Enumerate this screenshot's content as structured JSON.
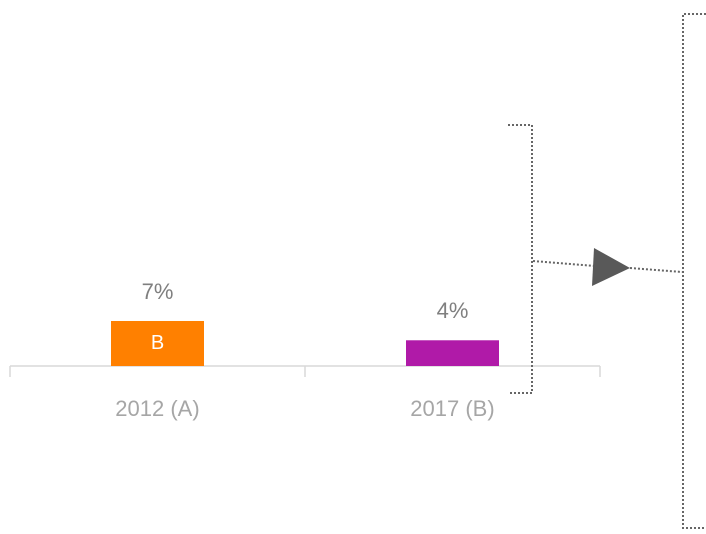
{
  "chart_data": {
    "type": "bar",
    "categories": [
      "2012 (A)",
      "2017 (B)"
    ],
    "values": [
      7,
      4
    ],
    "value_labels": [
      "7%",
      "4%"
    ],
    "colors": [
      "#ff8000",
      "#b01aa8"
    ],
    "inner_labels": [
      "B",
      null
    ]
  }
}
